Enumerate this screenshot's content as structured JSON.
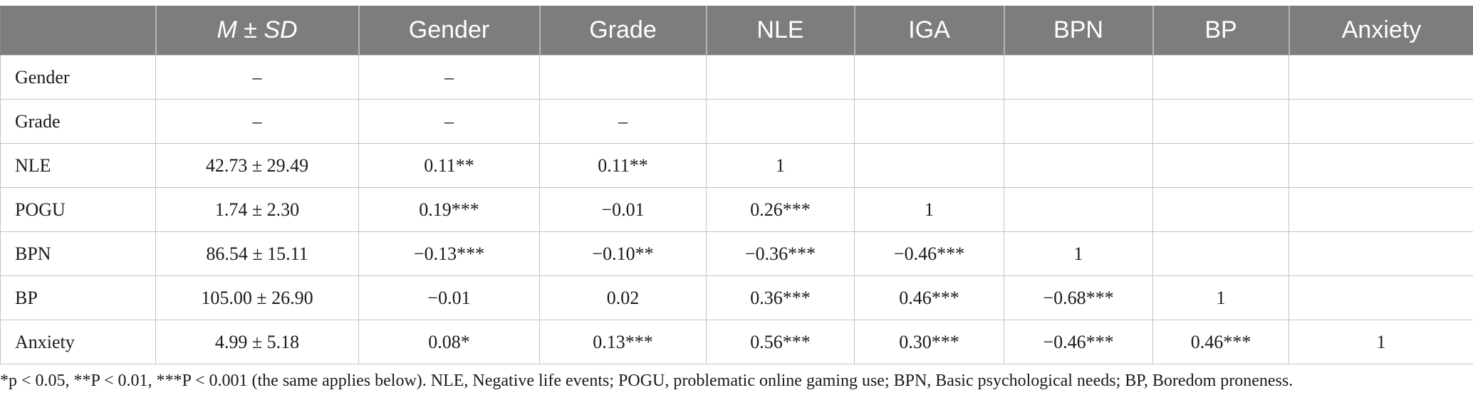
{
  "table": {
    "headers": [
      "",
      "M ± SD",
      "Gender",
      "Grade",
      "NLE",
      "IGA",
      "BPN",
      "BP",
      "Anxiety"
    ],
    "rows": [
      [
        "Gender",
        "–",
        "–",
        "",
        "",
        "",
        "",
        "",
        ""
      ],
      [
        "Grade",
        "–",
        "–",
        "–",
        "",
        "",
        "",
        "",
        ""
      ],
      [
        "NLE",
        "42.73 ± 29.49",
        "0.11**",
        "0.11**",
        "1",
        "",
        "",
        "",
        ""
      ],
      [
        "POGU",
        "1.74 ± 2.30",
        "0.19***",
        "−0.01",
        "0.26***",
        "1",
        "",
        "",
        ""
      ],
      [
        "BPN",
        "86.54 ± 15.11",
        "−0.13***",
        "−0.10**",
        "−0.36***",
        "−0.46***",
        "1",
        "",
        ""
      ],
      [
        "BP",
        "105.00 ± 26.90",
        "−0.01",
        "0.02",
        "0.36***",
        "0.46***",
        "−0.68***",
        "1",
        ""
      ],
      [
        "Anxiety",
        "4.99 ± 5.18",
        "0.08*",
        "0.13***",
        "0.56***",
        "0.30***",
        "−0.46***",
        "0.46***",
        "1"
      ]
    ]
  },
  "footnote": "*p < 0.05, **P < 0.01, ***P < 0.001 (the same applies below). NLE, Negative life events; POGU, problematic online gaming use; BPN, Basic psychological needs; BP, Boredom proneness."
}
